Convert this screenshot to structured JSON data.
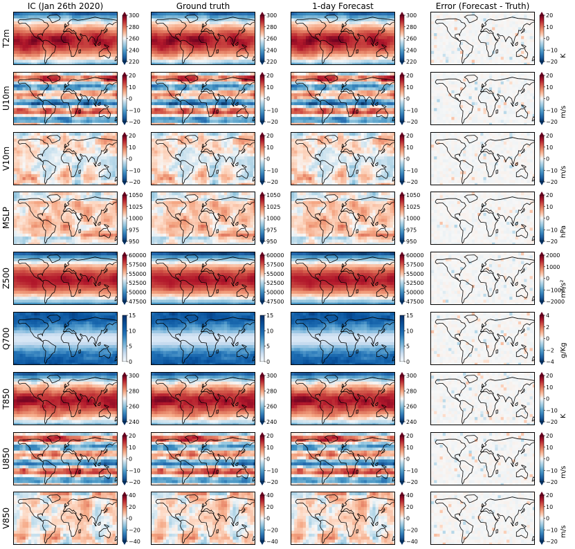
{
  "chart_data": {
    "type": "heatmap",
    "title": "",
    "columns": [
      {
        "key": "ic",
        "title": "IC (Jan 26th 2020)"
      },
      {
        "key": "truth",
        "title": "Ground truth"
      },
      {
        "key": "forecast",
        "title": "1-day Forecast"
      },
      {
        "key": "error",
        "title": "Error (Forecast - Truth)"
      }
    ],
    "rows": [
      {
        "variable": "T2m",
        "field_pattern": "temperature",
        "field_ticks": [
          "220",
          "240",
          "260",
          "280",
          "300"
        ],
        "field_range": [
          220,
          305
        ],
        "error_ticks": [
          "−20",
          "−10",
          "0",
          "10",
          "20"
        ],
        "error_range": [
          -20,
          20
        ],
        "error_unit": "K"
      },
      {
        "variable": "U10m",
        "field_pattern": "zonal",
        "field_ticks": [
          "−20",
          "−10",
          "0",
          "10",
          "20"
        ],
        "field_range": [
          -20,
          20
        ],
        "error_ticks": [
          "−20",
          "−10",
          "0",
          "10",
          "20"
        ],
        "error_range": [
          -20,
          20
        ],
        "error_unit": "m/s"
      },
      {
        "variable": "V10m",
        "field_pattern": "meridional",
        "field_ticks": [
          "−20",
          "−10",
          "0",
          "10",
          "20"
        ],
        "field_range": [
          -20,
          20
        ],
        "error_ticks": [
          "−20",
          "−10",
          "0",
          "10",
          "20"
        ],
        "error_range": [
          -20,
          20
        ],
        "error_unit": "m/s"
      },
      {
        "variable": "MSLP",
        "field_pattern": "pressure",
        "field_ticks": [
          "950",
          "975",
          "1000",
          "1025",
          "1050"
        ],
        "field_range": [
          950,
          1060
        ],
        "error_ticks": [
          "−20",
          "−10",
          "0",
          "10",
          "20"
        ],
        "error_range": [
          -20,
          20
        ],
        "error_unit": "hPa"
      },
      {
        "variable": "Z500",
        "field_pattern": "geopotential",
        "field_ticks": [
          "47500",
          "50000",
          "52500",
          "55000",
          "57500",
          "60000"
        ],
        "field_range": [
          47500,
          60000
        ],
        "error_ticks": [
          "−2000",
          "−1000",
          "0",
          "1000",
          "2000"
        ],
        "error_range": [
          -2000,
          2000
        ],
        "error_unit": "m²/s²"
      },
      {
        "variable": "Q700",
        "field_pattern": "humidity",
        "field_ticks": [
          "0",
          "5",
          "10",
          "15"
        ],
        "field_range": [
          0,
          15
        ],
        "error_ticks": [
          "−4",
          "−2",
          "0",
          "2",
          "4"
        ],
        "error_range": [
          -5,
          5
        ],
        "error_unit": "g/Kg"
      },
      {
        "variable": "T850",
        "field_pattern": "temperature",
        "field_ticks": [
          "240",
          "260",
          "280",
          "300"
        ],
        "field_range": [
          240,
          300
        ],
        "error_ticks": [
          "−20",
          "−10",
          "0",
          "10",
          "20"
        ],
        "error_range": [
          -20,
          20
        ],
        "error_unit": "K"
      },
      {
        "variable": "U850",
        "field_pattern": "zonal",
        "field_ticks": [
          "−20",
          "−10",
          "0",
          "10",
          "20"
        ],
        "field_range": [
          -25,
          25
        ],
        "error_ticks": [
          "−20",
          "−10",
          "0",
          "10",
          "20"
        ],
        "error_range": [
          -20,
          20
        ],
        "error_unit": "m/s"
      },
      {
        "variable": "V850",
        "field_pattern": "meridional",
        "field_ticks": [
          "−40",
          "−20",
          "0",
          "20",
          "40"
        ],
        "field_range": [
          -40,
          40
        ],
        "error_ticks": [
          "−20",
          "−10",
          "0",
          "10",
          "20"
        ],
        "error_range": [
          -20,
          20
        ],
        "error_unit": "m/s"
      }
    ],
    "colormap": "RdBu_r",
    "humidity_colormap": "Blues",
    "map_projection": "equirectangular, coastlines",
    "grid": false
  }
}
